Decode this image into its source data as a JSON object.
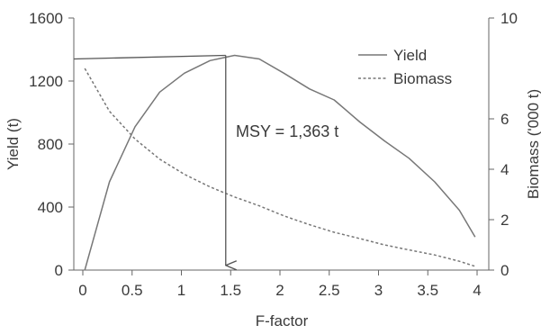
{
  "chart_data": {
    "type": "line",
    "title": "",
    "xlabel": "F-factor",
    "ylabel_left": "Yield (t)",
    "ylabel_right": "Biomass ('000 t)",
    "xlim": [
      0,
      4
    ],
    "ylim_left": [
      0,
      1600
    ],
    "ylim_right": [
      0,
      10
    ],
    "x_ticks": [
      0,
      0.5,
      1,
      1.5,
      2,
      2.5,
      3,
      3.5,
      4
    ],
    "x_tick_labels": [
      "0",
      "0.5",
      "1",
      "1.5",
      "2",
      "2.5",
      "3",
      "3.5",
      "4"
    ],
    "y_left_ticks": [
      0,
      400,
      800,
      1200,
      1600
    ],
    "y_left_tick_labels": [
      "0",
      "400",
      "800",
      "1200",
      "1600"
    ],
    "y_right_ticks": [
      0,
      2,
      4,
      6,
      10
    ],
    "y_right_tick_labels": [
      "0",
      "2",
      "4",
      "6",
      "10"
    ],
    "grid": false,
    "legend_position": "top-right",
    "series": [
      {
        "name": "Yield",
        "axis": "left",
        "style": "solid",
        "color": "#777777",
        "x": [
          0.02,
          0.27,
          0.53,
          0.78,
          1.03,
          1.29,
          1.54,
          1.79,
          2.04,
          2.3,
          2.55,
          2.81,
          3.06,
          3.31,
          3.57,
          3.82,
          3.98
        ],
        "y": [
          0,
          560,
          910,
          1130,
          1250,
          1330,
          1363,
          1340,
          1250,
          1150,
          1080,
          940,
          820,
          710,
          560,
          380,
          210
        ]
      },
      {
        "name": "Biomass",
        "axis": "right",
        "style": "dashed",
        "color": "#777777",
        "x": [
          0.02,
          0.27,
          0.53,
          0.78,
          1.03,
          1.29,
          1.54,
          1.79,
          2.04,
          2.3,
          2.55,
          2.81,
          3.06,
          3.31,
          3.57,
          3.82,
          3.98
        ],
        "y": [
          8.0,
          6.3,
          5.2,
          4.4,
          3.8,
          3.3,
          2.9,
          2.55,
          2.15,
          1.8,
          1.5,
          1.25,
          1.0,
          0.8,
          0.6,
          0.35,
          0.15
        ]
      }
    ],
    "annotations": [
      {
        "text": "MSY = 1,363 t",
        "x": 1.45,
        "y": 1363,
        "axis": "left"
      }
    ],
    "reference_lines": [
      {
        "kind": "line",
        "from": [
          -0.09,
          1340
        ],
        "to": [
          1.45,
          1363
        ],
        "axis": "left"
      },
      {
        "kind": "arrow",
        "from": [
          1.45,
          1363
        ],
        "to": [
          1.45,
          30
        ],
        "axis": "left"
      }
    ]
  }
}
